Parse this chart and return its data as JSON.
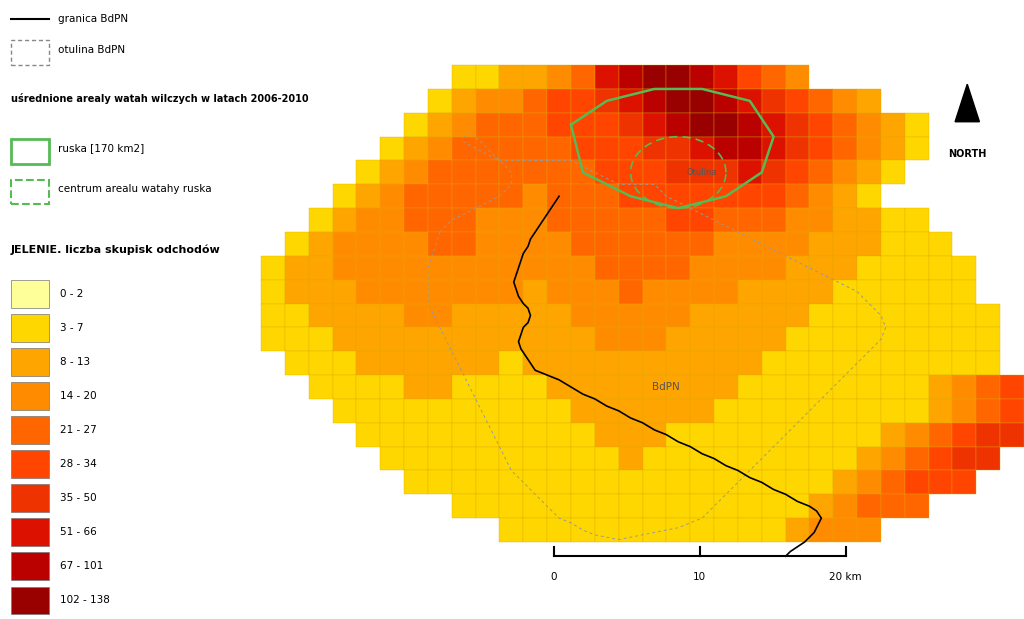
{
  "legend_title": "JELENIE. liczba skupisk odchodów",
  "legend_items": [
    {
      "label": "0 - 2",
      "color": "#FFFF99"
    },
    {
      "label": "3 - 7",
      "color": "#FFD700"
    },
    {
      "label": "8 - 13",
      "color": "#FFA500"
    },
    {
      "label": "14 - 20",
      "color": "#FF8C00"
    },
    {
      "label": "21 - 27",
      "color": "#FF6600"
    },
    {
      "label": "28 - 34",
      "color": "#FF4500"
    },
    {
      "label": "35 - 50",
      "color": "#EE3300"
    },
    {
      "label": "51 - 66",
      "color": "#DD1100"
    },
    {
      "label": "67 - 101",
      "color": "#BB0000"
    },
    {
      "label": "102 - 138",
      "color": "#990000"
    }
  ],
  "bg_color": "#FFFFFF",
  "grid_line_color": "#DDAA00",
  "boundary_color": "#000000",
  "otulina_color": "#888888",
  "ruska_color": "#55BB55",
  "header_line1": "granica BdPN",
  "header_line2": "otulina BdPN",
  "header_bold": "uśrednione arealy watah wilczych w latach 2006-2010",
  "header_ruska": "ruska [170 km2]",
  "header_centrum": "centrum arealu watahy ruska",
  "label_otulina": "Otulina",
  "label_bdpn": "BdPN",
  "north_label": "NORTH",
  "scalebar_labels": [
    "0",
    "10",
    "20 km"
  ],
  "COLS": 34,
  "ROWS": 20,
  "grid": [
    [
      0,
      0,
      0,
      0,
      0,
      0,
      0,
      0,
      0,
      0,
      1,
      1,
      2,
      2,
      3,
      4,
      7,
      8,
      9,
      9,
      8,
      7,
      5,
      4,
      3,
      0,
      0,
      0,
      0,
      0,
      0,
      0,
      0,
      0
    ],
    [
      0,
      0,
      0,
      0,
      0,
      0,
      0,
      0,
      0,
      1,
      2,
      3,
      3,
      4,
      5,
      5,
      6,
      7,
      8,
      9,
      9,
      8,
      7,
      6,
      5,
      4,
      3,
      2,
      0,
      0,
      0,
      0,
      0,
      0
    ],
    [
      0,
      0,
      0,
      0,
      0,
      0,
      0,
      0,
      1,
      2,
      3,
      4,
      4,
      4,
      5,
      5,
      5,
      6,
      7,
      8,
      9,
      9,
      8,
      7,
      6,
      5,
      4,
      3,
      2,
      1,
      0,
      0,
      0,
      0
    ],
    [
      0,
      0,
      0,
      0,
      0,
      0,
      0,
      1,
      2,
      3,
      4,
      4,
      4,
      4,
      4,
      5,
      5,
      5,
      6,
      6,
      7,
      8,
      8,
      7,
      6,
      5,
      4,
      3,
      2,
      1,
      0,
      0,
      0,
      0
    ],
    [
      0,
      0,
      0,
      0,
      0,
      0,
      1,
      2,
      3,
      4,
      4,
      4,
      4,
      4,
      4,
      4,
      5,
      5,
      5,
      6,
      6,
      6,
      7,
      6,
      5,
      4,
      3,
      2,
      1,
      0,
      0,
      0,
      0,
      0
    ],
    [
      0,
      0,
      0,
      0,
      0,
      1,
      2,
      3,
      4,
      4,
      4,
      4,
      4,
      3,
      4,
      4,
      4,
      5,
      5,
      5,
      5,
      5,
      5,
      5,
      4,
      3,
      2,
      1,
      0,
      0,
      0,
      0,
      0,
      0
    ],
    [
      0,
      0,
      0,
      0,
      1,
      2,
      3,
      3,
      4,
      4,
      4,
      3,
      3,
      3,
      4,
      4,
      4,
      4,
      4,
      5,
      5,
      4,
      4,
      4,
      3,
      3,
      2,
      2,
      1,
      1,
      0,
      0,
      0,
      0
    ],
    [
      0,
      0,
      0,
      1,
      2,
      3,
      3,
      3,
      3,
      4,
      4,
      3,
      3,
      3,
      3,
      4,
      4,
      4,
      4,
      4,
      4,
      3,
      3,
      3,
      3,
      2,
      2,
      2,
      1,
      1,
      1,
      0,
      0,
      0
    ],
    [
      0,
      0,
      1,
      2,
      2,
      3,
      3,
      3,
      3,
      3,
      3,
      3,
      3,
      3,
      3,
      3,
      4,
      4,
      4,
      4,
      3,
      3,
      3,
      3,
      2,
      2,
      2,
      1,
      1,
      1,
      1,
      1,
      0,
      0
    ],
    [
      0,
      0,
      1,
      2,
      2,
      2,
      3,
      3,
      3,
      3,
      3,
      3,
      3,
      2,
      3,
      3,
      3,
      4,
      3,
      3,
      3,
      3,
      2,
      2,
      2,
      2,
      1,
      1,
      1,
      1,
      1,
      1,
      0,
      0
    ],
    [
      0,
      0,
      1,
      1,
      2,
      2,
      2,
      2,
      3,
      3,
      2,
      2,
      2,
      2,
      2,
      3,
      3,
      3,
      3,
      3,
      2,
      2,
      2,
      2,
      2,
      1,
      1,
      1,
      1,
      1,
      1,
      1,
      1,
      0
    ],
    [
      0,
      0,
      1,
      1,
      1,
      2,
      2,
      2,
      2,
      2,
      2,
      2,
      2,
      2,
      2,
      2,
      3,
      3,
      3,
      2,
      2,
      2,
      2,
      2,
      1,
      1,
      1,
      1,
      1,
      1,
      1,
      1,
      1,
      0
    ],
    [
      0,
      0,
      0,
      1,
      1,
      1,
      2,
      2,
      2,
      2,
      2,
      2,
      1,
      2,
      2,
      2,
      2,
      2,
      2,
      2,
      2,
      2,
      2,
      1,
      1,
      1,
      1,
      1,
      1,
      1,
      1,
      1,
      1,
      0
    ],
    [
      0,
      0,
      0,
      0,
      1,
      1,
      1,
      1,
      2,
      2,
      1,
      1,
      1,
      1,
      2,
      2,
      2,
      2,
      2,
      2,
      2,
      2,
      1,
      1,
      1,
      1,
      1,
      1,
      1,
      1,
      2,
      3,
      4,
      5
    ],
    [
      0,
      0,
      0,
      0,
      0,
      1,
      1,
      1,
      1,
      1,
      1,
      1,
      1,
      1,
      1,
      2,
      2,
      2,
      2,
      2,
      2,
      1,
      1,
      1,
      1,
      1,
      1,
      1,
      1,
      1,
      2,
      3,
      4,
      5
    ],
    [
      0,
      0,
      0,
      0,
      0,
      0,
      1,
      1,
      1,
      1,
      1,
      1,
      1,
      1,
      1,
      1,
      2,
      2,
      2,
      1,
      1,
      1,
      1,
      1,
      1,
      1,
      1,
      1,
      2,
      3,
      4,
      5,
      6,
      6
    ],
    [
      0,
      0,
      0,
      0,
      0,
      0,
      0,
      1,
      1,
      1,
      1,
      1,
      1,
      1,
      1,
      1,
      1,
      2,
      1,
      1,
      1,
      1,
      1,
      1,
      1,
      1,
      1,
      2,
      3,
      4,
      5,
      6,
      6,
      0
    ],
    [
      0,
      0,
      0,
      0,
      0,
      0,
      0,
      0,
      1,
      1,
      1,
      1,
      1,
      1,
      1,
      1,
      1,
      1,
      1,
      1,
      1,
      1,
      1,
      1,
      1,
      1,
      2,
      3,
      4,
      5,
      5,
      5,
      0,
      0
    ],
    [
      0,
      0,
      0,
      0,
      0,
      0,
      0,
      0,
      0,
      0,
      1,
      1,
      1,
      1,
      1,
      1,
      1,
      1,
      1,
      1,
      1,
      1,
      1,
      1,
      1,
      2,
      3,
      4,
      4,
      4,
      0,
      0,
      0,
      0
    ],
    [
      0,
      0,
      0,
      0,
      0,
      0,
      0,
      0,
      0,
      0,
      0,
      0,
      1,
      1,
      1,
      1,
      1,
      1,
      1,
      1,
      1,
      1,
      1,
      1,
      2,
      3,
      3,
      3,
      0,
      0,
      0,
      0,
      0,
      0
    ]
  ],
  "mask": [
    [
      0,
      0,
      0,
      0,
      0,
      0,
      0,
      0,
      0,
      0,
      1,
      1,
      1,
      1,
      1,
      1,
      1,
      1,
      1,
      1,
      1,
      1,
      1,
      1,
      1,
      0,
      0,
      0,
      0,
      0,
      0,
      0,
      0,
      0
    ],
    [
      0,
      0,
      0,
      0,
      0,
      0,
      0,
      0,
      0,
      1,
      1,
      1,
      1,
      1,
      1,
      1,
      1,
      1,
      1,
      1,
      1,
      1,
      1,
      1,
      1,
      1,
      1,
      1,
      0,
      0,
      0,
      0,
      0,
      0
    ],
    [
      0,
      0,
      0,
      0,
      0,
      0,
      0,
      0,
      1,
      1,
      1,
      1,
      1,
      1,
      1,
      1,
      1,
      1,
      1,
      1,
      1,
      1,
      1,
      1,
      1,
      1,
      1,
      1,
      1,
      1,
      0,
      0,
      0,
      0
    ],
    [
      0,
      0,
      0,
      0,
      0,
      0,
      0,
      1,
      1,
      1,
      1,
      1,
      1,
      1,
      1,
      1,
      1,
      1,
      1,
      1,
      1,
      1,
      1,
      1,
      1,
      1,
      1,
      1,
      1,
      1,
      0,
      0,
      0,
      0
    ],
    [
      0,
      0,
      0,
      0,
      0,
      0,
      1,
      1,
      1,
      1,
      1,
      1,
      1,
      1,
      1,
      1,
      1,
      1,
      1,
      1,
      1,
      1,
      1,
      1,
      1,
      1,
      1,
      1,
      1,
      0,
      0,
      0,
      0,
      0
    ],
    [
      0,
      0,
      0,
      0,
      0,
      1,
      1,
      1,
      1,
      1,
      1,
      1,
      1,
      1,
      1,
      1,
      1,
      1,
      1,
      1,
      1,
      1,
      1,
      1,
      1,
      1,
      1,
      1,
      0,
      0,
      0,
      0,
      0,
      0
    ],
    [
      0,
      0,
      0,
      0,
      1,
      1,
      1,
      1,
      1,
      1,
      1,
      1,
      1,
      1,
      1,
      1,
      1,
      1,
      1,
      1,
      1,
      1,
      1,
      1,
      1,
      1,
      1,
      1,
      1,
      1,
      0,
      0,
      0,
      0
    ],
    [
      0,
      0,
      0,
      1,
      1,
      1,
      1,
      1,
      1,
      1,
      1,
      1,
      1,
      1,
      1,
      1,
      1,
      1,
      1,
      1,
      1,
      1,
      1,
      1,
      1,
      1,
      1,
      1,
      1,
      1,
      1,
      0,
      0,
      0
    ],
    [
      0,
      0,
      1,
      1,
      1,
      1,
      1,
      1,
      1,
      1,
      1,
      1,
      1,
      1,
      1,
      1,
      1,
      1,
      1,
      1,
      1,
      1,
      1,
      1,
      1,
      1,
      1,
      1,
      1,
      1,
      1,
      1,
      0,
      0
    ],
    [
      0,
      0,
      1,
      1,
      1,
      1,
      1,
      1,
      1,
      1,
      1,
      1,
      1,
      1,
      1,
      1,
      1,
      1,
      1,
      1,
      1,
      1,
      1,
      1,
      1,
      1,
      1,
      1,
      1,
      1,
      1,
      1,
      0,
      0
    ],
    [
      0,
      0,
      1,
      1,
      1,
      1,
      1,
      1,
      1,
      1,
      1,
      1,
      1,
      1,
      1,
      1,
      1,
      1,
      1,
      1,
      1,
      1,
      1,
      1,
      1,
      1,
      1,
      1,
      1,
      1,
      1,
      1,
      1,
      0
    ],
    [
      0,
      0,
      1,
      1,
      1,
      1,
      1,
      1,
      1,
      1,
      1,
      1,
      1,
      1,
      1,
      1,
      1,
      1,
      1,
      1,
      1,
      1,
      1,
      1,
      1,
      1,
      1,
      1,
      1,
      1,
      1,
      1,
      1,
      0
    ],
    [
      0,
      0,
      0,
      1,
      1,
      1,
      1,
      1,
      1,
      1,
      1,
      1,
      1,
      1,
      1,
      1,
      1,
      1,
      1,
      1,
      1,
      1,
      1,
      1,
      1,
      1,
      1,
      1,
      1,
      1,
      1,
      1,
      1,
      0
    ],
    [
      0,
      0,
      0,
      0,
      1,
      1,
      1,
      1,
      1,
      1,
      1,
      1,
      1,
      1,
      1,
      1,
      1,
      1,
      1,
      1,
      1,
      1,
      1,
      1,
      1,
      1,
      1,
      1,
      1,
      1,
      1,
      1,
      1,
      1
    ],
    [
      0,
      0,
      0,
      0,
      0,
      1,
      1,
      1,
      1,
      1,
      1,
      1,
      1,
      1,
      1,
      1,
      1,
      1,
      1,
      1,
      1,
      1,
      1,
      1,
      1,
      1,
      1,
      1,
      1,
      1,
      1,
      1,
      1,
      1
    ],
    [
      0,
      0,
      0,
      0,
      0,
      0,
      1,
      1,
      1,
      1,
      1,
      1,
      1,
      1,
      1,
      1,
      1,
      1,
      1,
      1,
      1,
      1,
      1,
      1,
      1,
      1,
      1,
      1,
      1,
      1,
      1,
      1,
      1,
      1
    ],
    [
      0,
      0,
      0,
      0,
      0,
      0,
      0,
      1,
      1,
      1,
      1,
      1,
      1,
      1,
      1,
      1,
      1,
      1,
      1,
      1,
      1,
      1,
      1,
      1,
      1,
      1,
      1,
      1,
      1,
      1,
      1,
      1,
      1,
      0
    ],
    [
      0,
      0,
      0,
      0,
      0,
      0,
      0,
      0,
      1,
      1,
      1,
      1,
      1,
      1,
      1,
      1,
      1,
      1,
      1,
      1,
      1,
      1,
      1,
      1,
      1,
      1,
      1,
      1,
      1,
      1,
      1,
      1,
      0,
      0
    ],
    [
      0,
      0,
      0,
      0,
      0,
      0,
      0,
      0,
      0,
      0,
      1,
      1,
      1,
      1,
      1,
      1,
      1,
      1,
      1,
      1,
      1,
      1,
      1,
      1,
      1,
      1,
      1,
      1,
      1,
      1,
      0,
      0,
      0,
      0
    ],
    [
      0,
      0,
      0,
      0,
      0,
      0,
      0,
      0,
      0,
      0,
      0,
      0,
      1,
      1,
      1,
      1,
      1,
      1,
      1,
      1,
      1,
      1,
      1,
      1,
      1,
      1,
      1,
      1,
      0,
      0,
      0,
      0,
      0,
      0
    ]
  ]
}
